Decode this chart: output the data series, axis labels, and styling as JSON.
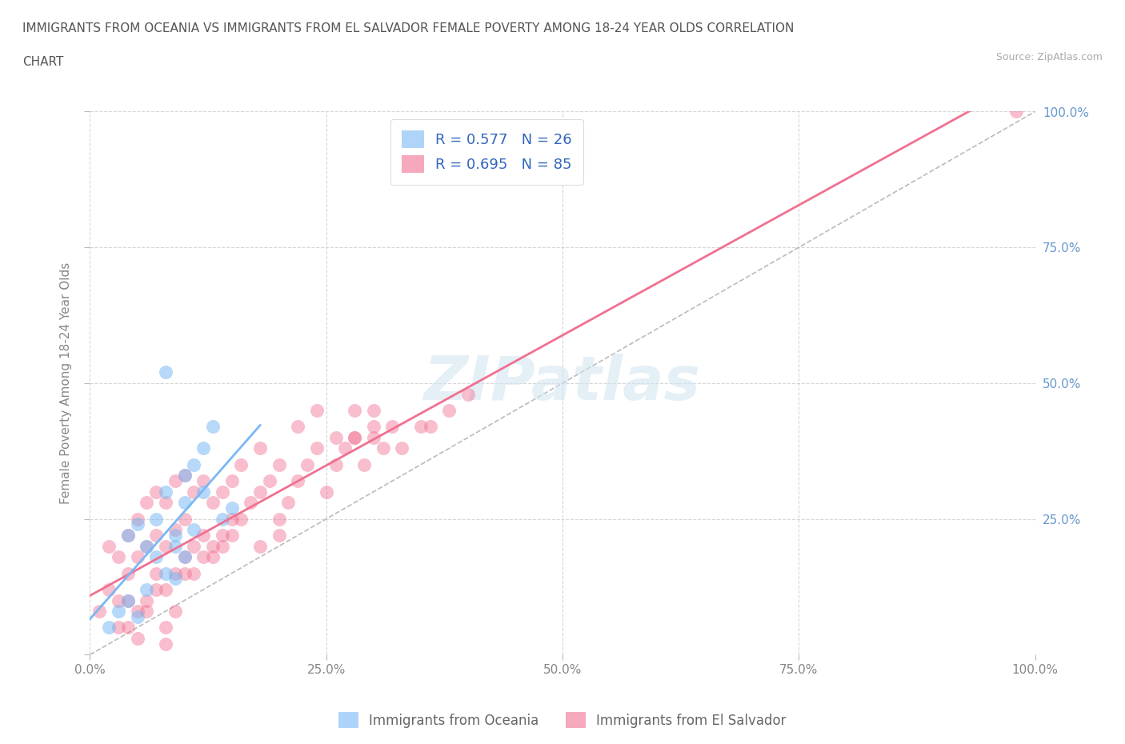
{
  "title_line1": "IMMIGRANTS FROM OCEANIA VS IMMIGRANTS FROM EL SALVADOR FEMALE POVERTY AMONG 18-24 YEAR OLDS CORRELATION",
  "title_line2": "CHART",
  "source": "Source: ZipAtlas.com",
  "ylabel": "Female Poverty Among 18-24 Year Olds",
  "xlim": [
    0.0,
    1.0
  ],
  "ylim": [
    0.0,
    1.0
  ],
  "xticks": [
    0.0,
    0.25,
    0.5,
    0.75,
    1.0
  ],
  "yticks": [
    0.25,
    0.5,
    0.75,
    1.0
  ],
  "watermark": "ZIPatlas",
  "oceania_color": "#7ab8f5",
  "elsalvador_color": "#f07090",
  "oceania_R": 0.577,
  "elsalvador_R": 0.695,
  "oceania_N": 26,
  "elsalvador_N": 85,
  "background_color": "#ffffff",
  "grid_color": "#cccccc",
  "title_color": "#555555",
  "legend_text_color": "#3366bb",
  "axis_label_color": "#6699cc",
  "legend_label1": "Immigrants from Oceania",
  "legend_label2": "Immigrants from El Salvador",
  "oceania_x": [
    0.02,
    0.03,
    0.04,
    0.04,
    0.05,
    0.05,
    0.06,
    0.06,
    0.07,
    0.07,
    0.08,
    0.08,
    0.09,
    0.1,
    0.1,
    0.11,
    0.12,
    0.13,
    0.08,
    0.09,
    0.14,
    0.15,
    0.09,
    0.1,
    0.11,
    0.12
  ],
  "oceania_y": [
    0.05,
    0.08,
    0.1,
    0.22,
    0.07,
    0.24,
    0.12,
    0.2,
    0.18,
    0.25,
    0.15,
    0.3,
    0.22,
    0.28,
    0.33,
    0.35,
    0.38,
    0.42,
    0.52,
    0.2,
    0.25,
    0.27,
    0.14,
    0.18,
    0.23,
    0.3
  ],
  "elsalvador_x": [
    0.01,
    0.02,
    0.02,
    0.03,
    0.03,
    0.04,
    0.04,
    0.04,
    0.05,
    0.05,
    0.05,
    0.06,
    0.06,
    0.06,
    0.07,
    0.07,
    0.07,
    0.08,
    0.08,
    0.08,
    0.09,
    0.09,
    0.09,
    0.1,
    0.1,
    0.1,
    0.11,
    0.11,
    0.12,
    0.12,
    0.13,
    0.13,
    0.14,
    0.14,
    0.15,
    0.15,
    0.16,
    0.16,
    0.17,
    0.18,
    0.18,
    0.19,
    0.2,
    0.2,
    0.21,
    0.22,
    0.23,
    0.24,
    0.25,
    0.26,
    0.27,
    0.28,
    0.29,
    0.3,
    0.31,
    0.32,
    0.22,
    0.24,
    0.26,
    0.28,
    0.3,
    0.18,
    0.2,
    0.35,
    0.38,
    0.4,
    0.33,
    0.36,
    0.3,
    0.28,
    0.08,
    0.09,
    0.1,
    0.05,
    0.06,
    0.07,
    0.03,
    0.04,
    0.12,
    0.13,
    0.15,
    0.11,
    0.14,
    0.08,
    0.98
  ],
  "elsalvador_y": [
    0.08,
    0.12,
    0.2,
    0.1,
    0.18,
    0.05,
    0.15,
    0.22,
    0.08,
    0.18,
    0.25,
    0.1,
    0.2,
    0.28,
    0.15,
    0.22,
    0.3,
    0.12,
    0.2,
    0.28,
    0.15,
    0.23,
    0.32,
    0.18,
    0.25,
    0.33,
    0.2,
    0.3,
    0.22,
    0.32,
    0.18,
    0.28,
    0.2,
    0.3,
    0.22,
    0.32,
    0.25,
    0.35,
    0.28,
    0.3,
    0.38,
    0.32,
    0.25,
    0.35,
    0.28,
    0.32,
    0.35,
    0.38,
    0.3,
    0.35,
    0.38,
    0.4,
    0.35,
    0.4,
    0.38,
    0.42,
    0.42,
    0.45,
    0.4,
    0.45,
    0.42,
    0.2,
    0.22,
    0.42,
    0.45,
    0.48,
    0.38,
    0.42,
    0.45,
    0.4,
    0.05,
    0.08,
    0.15,
    0.03,
    0.08,
    0.12,
    0.05,
    0.1,
    0.18,
    0.2,
    0.25,
    0.15,
    0.22,
    0.02,
    1.0
  ]
}
